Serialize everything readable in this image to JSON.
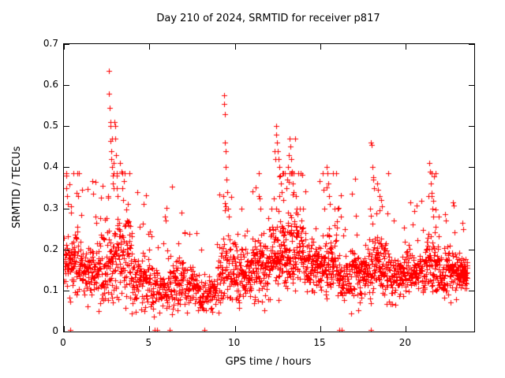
{
  "colors": {
    "marker": "#ff0000",
    "axis": "#000000",
    "text": "#000000",
    "background": "#ffffff"
  },
  "chart_data": {
    "type": "scatter",
    "title": "Day 210 of 2024, SRMTID for receiver p817",
    "xlabel": "GPS time / hours",
    "ylabel": "SRMTID / TECUs",
    "xlim": [
      0,
      24
    ],
    "ylim": [
      0,
      0.7
    ],
    "xticks": [
      0,
      5,
      10,
      15,
      20
    ],
    "xtick_labels": [
      "0",
      "5",
      "10",
      "15",
      "20"
    ],
    "yticks": [
      0,
      0.1,
      0.2,
      0.3,
      0.4,
      0.5,
      0.6,
      0.7
    ],
    "ytick_labels": [
      "0",
      "0.1",
      "0.2",
      "0.3",
      "0.4",
      "0.5",
      "0.6",
      "0.7"
    ],
    "grid": false,
    "legend": "none",
    "marker": "plus",
    "marker_color": "#ff0000",
    "seed": 210817,
    "baseline": {
      "comment": "dense 30s-epoch scatter cloud, per-hour envelope (mean/spread in TECUs)",
      "points_per_hour": [
        105,
        95,
        100,
        100,
        90,
        75,
        85,
        80,
        70,
        90,
        95,
        100,
        110,
        110,
        100,
        100,
        90,
        95,
        100,
        85,
        90,
        100,
        95,
        80
      ],
      "hour_mean": [
        0.17,
        0.15,
        0.16,
        0.18,
        0.13,
        0.1,
        0.12,
        0.11,
        0.09,
        0.14,
        0.14,
        0.16,
        0.19,
        0.2,
        0.16,
        0.16,
        0.13,
        0.14,
        0.16,
        0.13,
        0.15,
        0.16,
        0.14,
        0.14
      ],
      "hour_spread": [
        0.06,
        0.05,
        0.07,
        0.08,
        0.05,
        0.04,
        0.05,
        0.04,
        0.03,
        0.06,
        0.05,
        0.06,
        0.07,
        0.07,
        0.05,
        0.06,
        0.05,
        0.05,
        0.06,
        0.04,
        0.04,
        0.06,
        0.04,
        0.03
      ],
      "last_hour_end": 23.6,
      "y_min": 0.028,
      "y_max": 0.385
    },
    "outlier_points": [
      [
        0.15,
        0.35
      ],
      [
        0.2,
        0.33
      ],
      [
        0.25,
        0.31
      ],
      [
        2.6,
        0.33
      ],
      [
        2.62,
        0.635
      ],
      [
        2.64,
        0.58
      ],
      [
        2.66,
        0.545
      ],
      [
        2.7,
        0.51
      ],
      [
        2.72,
        0.5
      ],
      [
        2.74,
        0.465
      ],
      [
        2.76,
        0.44
      ],
      [
        2.78,
        0.42
      ],
      [
        2.8,
        0.47
      ],
      [
        2.82,
        0.4
      ],
      [
        2.85,
        0.38
      ],
      [
        2.88,
        0.36
      ],
      [
        2.9,
        0.41
      ],
      [
        2.92,
        0.35
      ],
      [
        2.95,
        0.51
      ],
      [
        3.0,
        0.5
      ],
      [
        3.02,
        0.47
      ],
      [
        3.05,
        0.43
      ],
      [
        3.08,
        0.38
      ],
      [
        3.1,
        0.35
      ],
      [
        3.15,
        0.33
      ],
      [
        3.3,
        0.41
      ],
      [
        3.35,
        0.39
      ],
      [
        3.4,
        0.35
      ],
      [
        3.45,
        0.32
      ],
      [
        5.9,
        0.28
      ],
      [
        5.95,
        0.27
      ],
      [
        9.3,
        0.33
      ],
      [
        9.35,
        0.575
      ],
      [
        9.38,
        0.555
      ],
      [
        9.4,
        0.53
      ],
      [
        9.42,
        0.46
      ],
      [
        9.45,
        0.44
      ],
      [
        9.48,
        0.4
      ],
      [
        9.5,
        0.37
      ],
      [
        9.55,
        0.34
      ],
      [
        9.6,
        0.3
      ],
      [
        9.65,
        0.28
      ],
      [
        10.4,
        0.3
      ],
      [
        11.4,
        0.33
      ],
      [
        11.45,
        0.325
      ],
      [
        11.5,
        0.3
      ],
      [
        12.3,
        0.44
      ],
      [
        12.35,
        0.42
      ],
      [
        12.4,
        0.5
      ],
      [
        12.42,
        0.48
      ],
      [
        12.45,
        0.46
      ],
      [
        12.5,
        0.44
      ],
      [
        12.55,
        0.42
      ],
      [
        12.6,
        0.4
      ],
      [
        12.65,
        0.38
      ],
      [
        12.7,
        0.36
      ],
      [
        12.75,
        0.34
      ],
      [
        12.85,
        0.32
      ],
      [
        13.0,
        0.35
      ],
      [
        13.05,
        0.37
      ],
      [
        13.1,
        0.4
      ],
      [
        13.15,
        0.43
      ],
      [
        13.2,
        0.47
      ],
      [
        13.25,
        0.45
      ],
      [
        13.3,
        0.42
      ],
      [
        13.35,
        0.39
      ],
      [
        13.4,
        0.36
      ],
      [
        13.45,
        0.34
      ],
      [
        13.5,
        0.47
      ],
      [
        13.55,
        0.33
      ],
      [
        13.6,
        0.3
      ],
      [
        14.0,
        0.3
      ],
      [
        15.35,
        0.4
      ],
      [
        15.4,
        0.385
      ],
      [
        15.45,
        0.36
      ],
      [
        15.5,
        0.33
      ],
      [
        15.55,
        0.31
      ],
      [
        16.0,
        0.3
      ],
      [
        17.95,
        0.46
      ],
      [
        18.0,
        0.455
      ],
      [
        18.05,
        0.4
      ],
      [
        18.1,
        0.37
      ],
      [
        18.15,
        0.35
      ],
      [
        18.3,
        0.36
      ],
      [
        18.35,
        0.345
      ],
      [
        18.45,
        0.33
      ],
      [
        18.55,
        0.32
      ],
      [
        18.6,
        0.305
      ],
      [
        19.3,
        0.27
      ],
      [
        21.3,
        0.33
      ],
      [
        21.35,
        0.41
      ],
      [
        21.4,
        0.39
      ],
      [
        21.45,
        0.36
      ],
      [
        21.5,
        0.33
      ],
      [
        21.55,
        0.3
      ],
      [
        21.6,
        0.28
      ],
      [
        22.3,
        0.285
      ],
      [
        22.35,
        0.27
      ],
      [
        23.3,
        0.265
      ],
      [
        23.35,
        0.25
      ]
    ],
    "zero_marks": [
      0.35,
      5.3,
      5.45,
      6.2,
      8.2,
      16.1,
      16.25,
      17.95
    ]
  }
}
